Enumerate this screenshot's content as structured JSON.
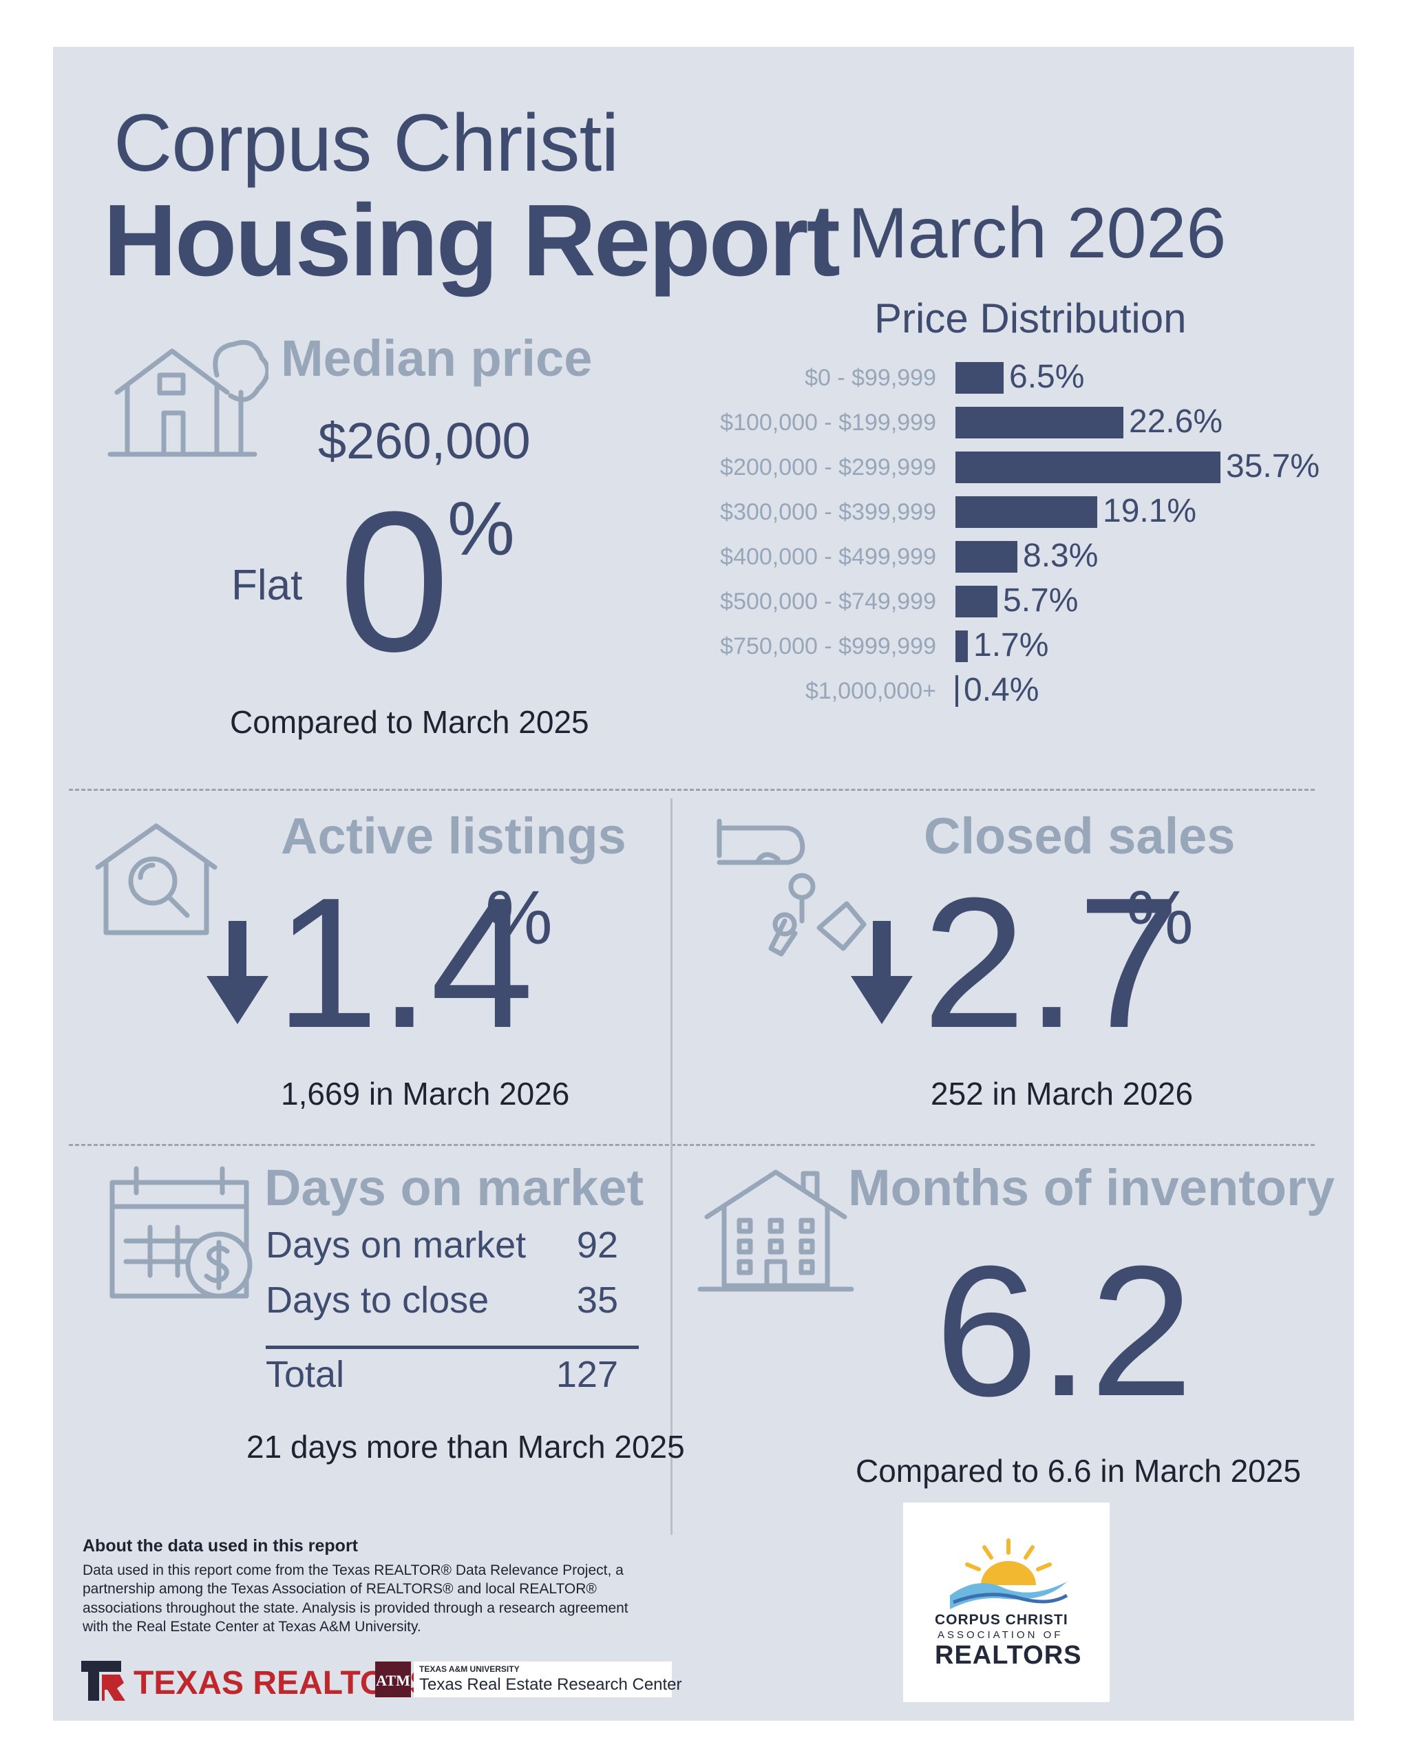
{
  "header": {
    "city": "Corpus Christi",
    "report": "Housing Report",
    "month": "March 2026"
  },
  "median_price": {
    "title": "Median price",
    "value": "$260,000",
    "direction": "Flat",
    "change": "0",
    "unit": "%",
    "comparison": "Compared to March 2025"
  },
  "price_distribution": {
    "title": "Price Distribution",
    "items": [
      {
        "range": "$0 - $99,999",
        "label": "6.5%",
        "pct": 6.5
      },
      {
        "range": "$100,000 - $199,999",
        "label": "22.6%",
        "pct": 22.6
      },
      {
        "range": "$200,000 - $299,999",
        "label": "35.7%",
        "pct": 35.7
      },
      {
        "range": "$300,000 - $399,999",
        "label": "19.1%",
        "pct": 19.1
      },
      {
        "range": "$400,000 - $499,999",
        "label": "8.3%",
        "pct": 8.3
      },
      {
        "range": "$500,000 - $749,999",
        "label": "5.7%",
        "pct": 5.7
      },
      {
        "range": "$750,000 - $999,999",
        "label": "1.7%",
        "pct": 1.7
      },
      {
        "range": "$1,000,000+",
        "label": "0.4%",
        "pct": 0.4
      }
    ]
  },
  "active_listings": {
    "title": "Active listings",
    "change": "1.4",
    "unit": "%",
    "detail": "1,669 in March 2026"
  },
  "closed_sales": {
    "title": "Closed sales",
    "change": "2.7",
    "unit": "%",
    "detail": "252 in March 2026"
  },
  "days_on_market": {
    "title": "Days on market",
    "rows": [
      {
        "label": "Days on market",
        "value": "92"
      },
      {
        "label": "Days to close",
        "value": "35"
      }
    ],
    "total_label": "Total",
    "total_value": "127",
    "comparison": "21 days more than March 2025"
  },
  "months_inventory": {
    "title": "Months of inventory",
    "value": "6.2",
    "comparison": "Compared to 6.6 in March 2025"
  },
  "about": {
    "heading": "About the data used in this report",
    "body": "Data used in this report come from the Texas REALTOR® Data Relevance Project, a partnership among the Texas Association of REALTORS® and local REALTOR® associations throughout the state. Analysis is provided through a research agreement with the Real Estate Center at Texas A&M University."
  },
  "logos": {
    "texas_realtors": "TEXAS REALTORS",
    "tamu_small": "TEXAS A&M UNIVERSITY",
    "tamu_center": "Texas Real Estate Research Center",
    "ccar_line1": "CORPUS CHRISTI",
    "ccar_line2": "ASSOCIATION OF",
    "ccar_line3": "REALTORS"
  },
  "colors": {
    "navy": "#3f4c70",
    "muted": "#97a6b8",
    "panel": "#dde2ea",
    "texas_red": "#c0272d",
    "aggie_maroon": "#5a1a2a"
  }
}
